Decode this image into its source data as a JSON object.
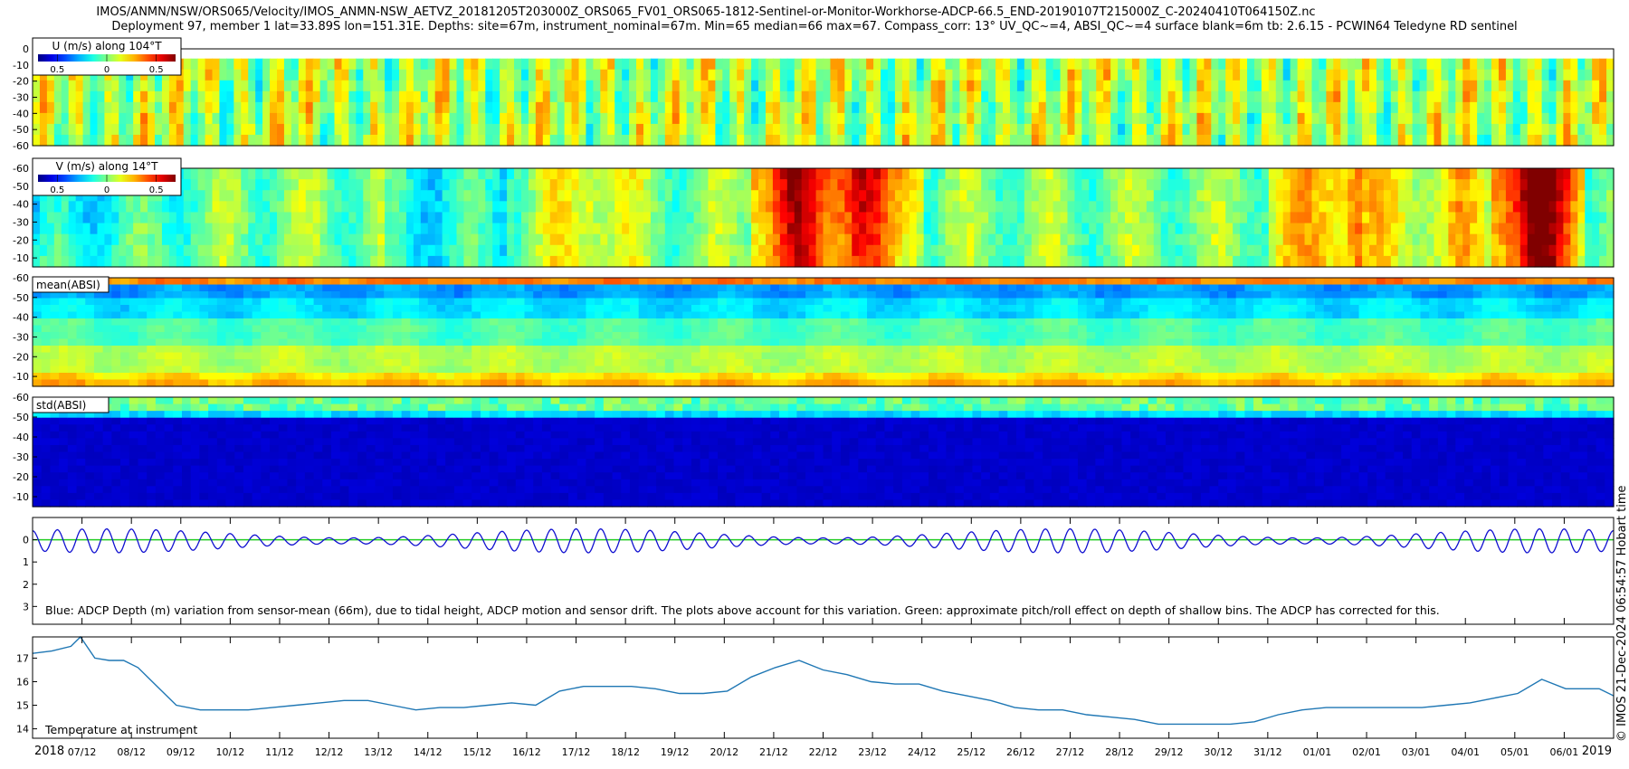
{
  "header": {
    "title_line1": "IMOS/ANMN/NSW/ORS065/Velocity/IMOS_ANMN-NSW_AETVZ_20181205T203000Z_ORS065_FV01_ORS065-1812-Sentinel-or-Monitor-Workhorse-ADCP-66.5_END-20190107T215000Z_C-20240410T064150Z.nc",
    "title_line2": "Deployment 97, member 1 lat=33.89S lon=151.31E. Depths: site=67m, instrument_nominal=67m. Min=65 median=66 max=67. Compass_corr: 13° UV_QC~=4, ABSI_QC~=4 surface blank=6m tb: 2.6.15 - PCWIN64 Teledyne RD sentinel"
  },
  "side_note": "© IMOS 21-Dec-2024 06:54:57 Hobart time",
  "chart_data": [
    {
      "type": "heatmap",
      "id": "u",
      "title": "U (m/s) along 104°T",
      "colorbar_ticks": [
        "0.5",
        "0",
        "0.5"
      ],
      "yticks": [
        "0",
        "-10",
        "-20",
        "-30",
        "-40",
        "-50",
        "-60"
      ],
      "ylim": [
        -60,
        0
      ],
      "description_values": "mostly near 0, green/yellow streaks"
    },
    {
      "type": "heatmap",
      "id": "v",
      "title": "V (m/s) along 14°T",
      "colorbar_ticks": [
        "0.5",
        "0",
        "0.5"
      ],
      "yticks": [
        "-10",
        "-20",
        "-30",
        "-40",
        "-50",
        "-60"
      ],
      "ylim": [
        -60,
        -5
      ]
    },
    {
      "type": "heatmap",
      "id": "mean_absi",
      "title": "mean(ABSI)",
      "yticks": [
        "-10",
        "-20",
        "-30",
        "-40",
        "-50",
        "-60"
      ],
      "ylim": [
        -60,
        -5
      ]
    },
    {
      "type": "heatmap",
      "id": "std_absi",
      "title": "std(ABSI)",
      "yticks": [
        "-10",
        "-20",
        "-30",
        "-40",
        "-50",
        "-60"
      ],
      "ylim": [
        -60,
        -5
      ]
    },
    {
      "type": "line",
      "id": "depth",
      "annotation": "Blue: ADCP Depth (m) variation from sensor-mean (66m), due to tidal height, ADCP motion and sensor drift. The plots above account for this variation. Green: approximate pitch/roll effect on depth of shallow bins. The ADCP has corrected for this.",
      "yticks": [
        "0",
        "1",
        "2",
        "3"
      ],
      "ylim": [
        -1,
        3.8
      ],
      "cycles": 64,
      "amplitude_mean": 0.45,
      "series": [
        {
          "color": "#1010d0"
        },
        {
          "color": "#22cc22",
          "value": 0
        }
      ]
    },
    {
      "type": "line",
      "id": "temperature",
      "annotation": "Temperature at instrument",
      "yticks": [
        "14",
        "15",
        "16",
        "17"
      ],
      "ylim": [
        13.6,
        17.9
      ],
      "color": "#1f77b4",
      "x_day_index": [
        0,
        0.4,
        0.8,
        1.0,
        1.3,
        1.6,
        1.9,
        2.2,
        2.5,
        3.0,
        3.5,
        4.0,
        4.5,
        5.0,
        5.5,
        6.0,
        6.5,
        7.0,
        7.5,
        8.0,
        8.5,
        9.0,
        9.5,
        10.0,
        10.5,
        11.0,
        11.5,
        12.0,
        12.5,
        13.0,
        13.5,
        14.0,
        14.5,
        15.0,
        15.5,
        16.0,
        16.5,
        17.0,
        17.5,
        18.0,
        18.5,
        19.0,
        19.5,
        20.0,
        20.5,
        21.0,
        21.5,
        22.0,
        22.5,
        23.0,
        23.5,
        24.0,
        24.5,
        25.0,
        25.5,
        26.0,
        26.5,
        27.0,
        27.5,
        28.0,
        28.5,
        29.0,
        29.5,
        30.0,
        30.5,
        31.0,
        31.5,
        32.0,
        32.3,
        32.7,
        33.0
      ],
      "y": [
        17.2,
        17.3,
        17.5,
        17.9,
        17.0,
        16.9,
        16.9,
        16.6,
        16.0,
        15.0,
        14.8,
        14.8,
        14.8,
        14.9,
        15.0,
        15.1,
        15.2,
        15.2,
        15.0,
        14.8,
        14.9,
        14.9,
        15.0,
        15.1,
        15.0,
        15.6,
        15.8,
        15.8,
        15.8,
        15.7,
        15.5,
        15.5,
        15.6,
        16.2,
        16.6,
        16.9,
        16.5,
        16.3,
        16.0,
        15.9,
        15.9,
        15.6,
        15.4,
        15.2,
        14.9,
        14.8,
        14.8,
        14.6,
        14.5,
        14.4,
        14.2,
        14.2,
        14.2,
        14.2,
        14.3,
        14.6,
        14.8,
        14.9,
        14.9,
        14.9,
        14.9,
        14.9,
        15.0,
        15.1,
        15.3,
        15.5,
        16.1,
        15.7,
        15.7,
        15.7,
        15.4
      ]
    }
  ],
  "x_axis": {
    "labels": [
      "2018",
      "07/12",
      "08/12",
      "09/12",
      "10/12",
      "11/12",
      "12/12",
      "13/12",
      "14/12",
      "15/12",
      "16/12",
      "17/12",
      "18/12",
      "19/12",
      "20/12",
      "21/12",
      "22/12",
      "23/12",
      "24/12",
      "25/12",
      "26/12",
      "27/12",
      "28/12",
      "29/12",
      "30/12",
      "31/12",
      "01/01",
      "02/01",
      "03/01",
      "04/01",
      "05/01",
      "06/01",
      "2019"
    ]
  }
}
